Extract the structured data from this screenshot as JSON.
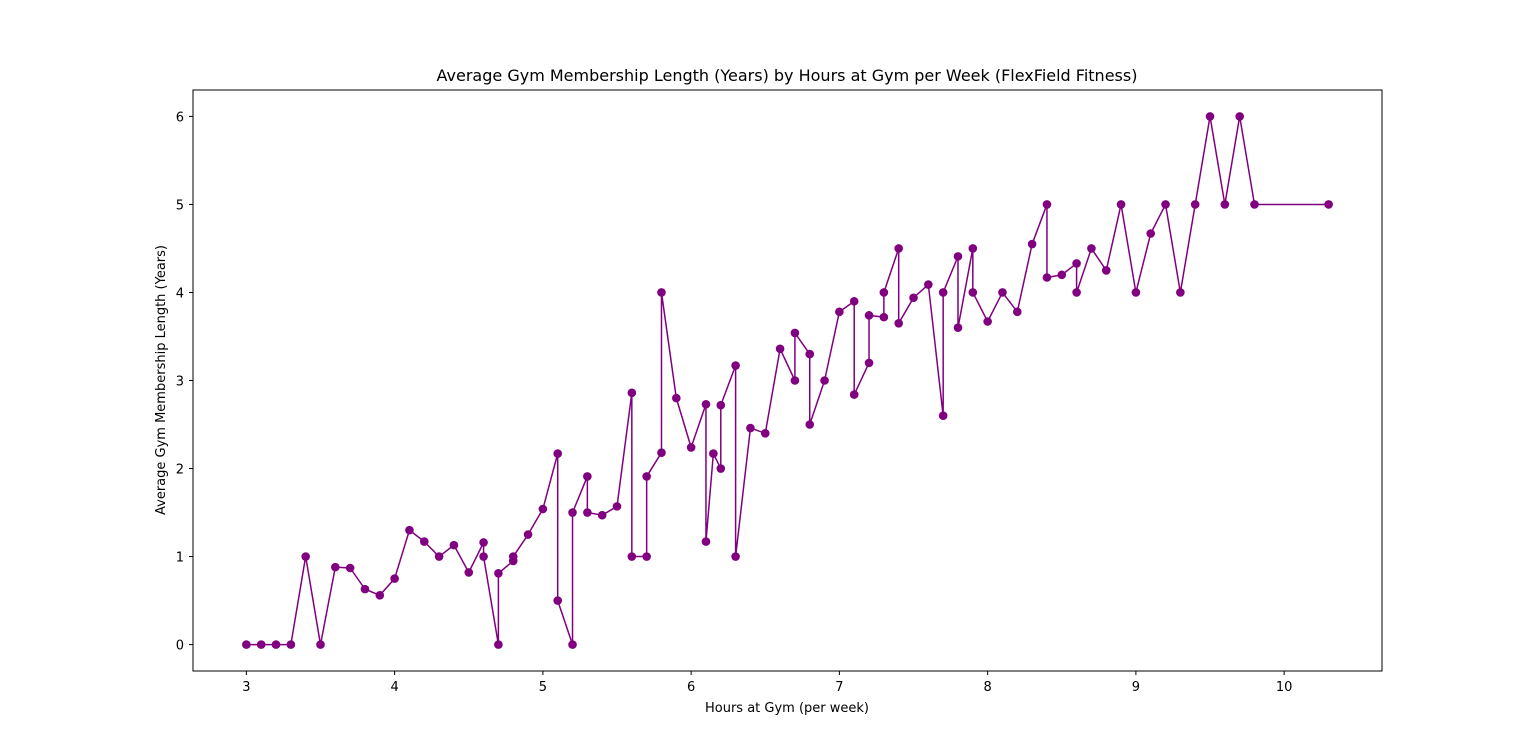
{
  "chart_data": {
    "type": "line",
    "title": "Average Gym Membership Length (Years) by Hours at Gym per Week (FlexField Fitness)",
    "xlabel": "Hours at Gym (per week)",
    "ylabel": "Average Gym Membership Length (Years)",
    "xlim": [
      2.64,
      10.66
    ],
    "ylim": [
      -0.3,
      6.3
    ],
    "xticks": [
      3,
      4,
      5,
      6,
      7,
      8,
      9,
      10
    ],
    "yticks": [
      0,
      1,
      2,
      3,
      4,
      5,
      6
    ],
    "grid": false,
    "color": "#800080",
    "marker": "circle",
    "x": [
      3.0,
      3.1,
      3.2,
      3.3,
      3.4,
      3.5,
      3.6,
      3.7,
      3.8,
      3.9,
      4.0,
      4.1,
      4.2,
      4.3,
      4.4,
      4.5,
      4.6,
      4.6,
      4.7,
      4.7,
      4.8,
      4.8,
      4.9,
      5.0,
      5.1,
      5.1,
      5.2,
      5.2,
      5.3,
      5.3,
      5.4,
      5.5,
      5.6,
      5.6,
      5.7,
      5.7,
      5.8,
      5.8,
      5.9,
      6.0,
      6.1,
      6.1,
      6.15,
      6.2,
      6.2,
      6.3,
      6.3,
      6.4,
      6.5,
      6.6,
      6.7,
      6.7,
      6.8,
      6.8,
      6.9,
      7.0,
      7.1,
      7.1,
      7.2,
      7.2,
      7.3,
      7.3,
      7.4,
      7.4,
      7.5,
      7.6,
      7.7,
      7.7,
      7.8,
      7.8,
      7.9,
      7.9,
      8.0,
      8.1,
      8.2,
      8.3,
      8.4,
      8.4,
      8.5,
      8.6,
      8.6,
      8.7,
      8.8,
      8.9,
      9.0,
      9.1,
      9.2,
      9.3,
      9.4,
      9.5,
      9.6,
      9.7,
      9.8,
      10.3
    ],
    "y": [
      0.0,
      0.0,
      0.0,
      0.0,
      1.0,
      0.0,
      0.88,
      0.87,
      0.63,
      0.56,
      0.75,
      1.3,
      1.17,
      1.0,
      1.13,
      0.82,
      1.16,
      1.0,
      0.0,
      0.81,
      0.95,
      1.0,
      1.25,
      1.54,
      2.17,
      0.5,
      0.0,
      1.5,
      1.91,
      1.5,
      1.47,
      1.57,
      2.86,
      1.0,
      1.0,
      1.91,
      2.18,
      4.0,
      2.8,
      2.24,
      2.73,
      1.17,
      2.17,
      2.0,
      2.72,
      3.17,
      1.0,
      2.46,
      2.4,
      3.36,
      3.0,
      3.54,
      3.3,
      2.5,
      3.0,
      3.78,
      3.9,
      2.84,
      3.2,
      3.74,
      3.72,
      4.0,
      4.5,
      3.65,
      3.94,
      4.09,
      2.6,
      4.0,
      4.41,
      3.6,
      4.5,
      4.0,
      3.67,
      4.0,
      3.78,
      4.55,
      5.0,
      4.17,
      4.2,
      4.33,
      4.0,
      4.5,
      4.25,
      5.0,
      4.0,
      4.67,
      5.0,
      4.0,
      5.0,
      6.0,
      5.0,
      6.0,
      5.0,
      5.0
    ]
  }
}
